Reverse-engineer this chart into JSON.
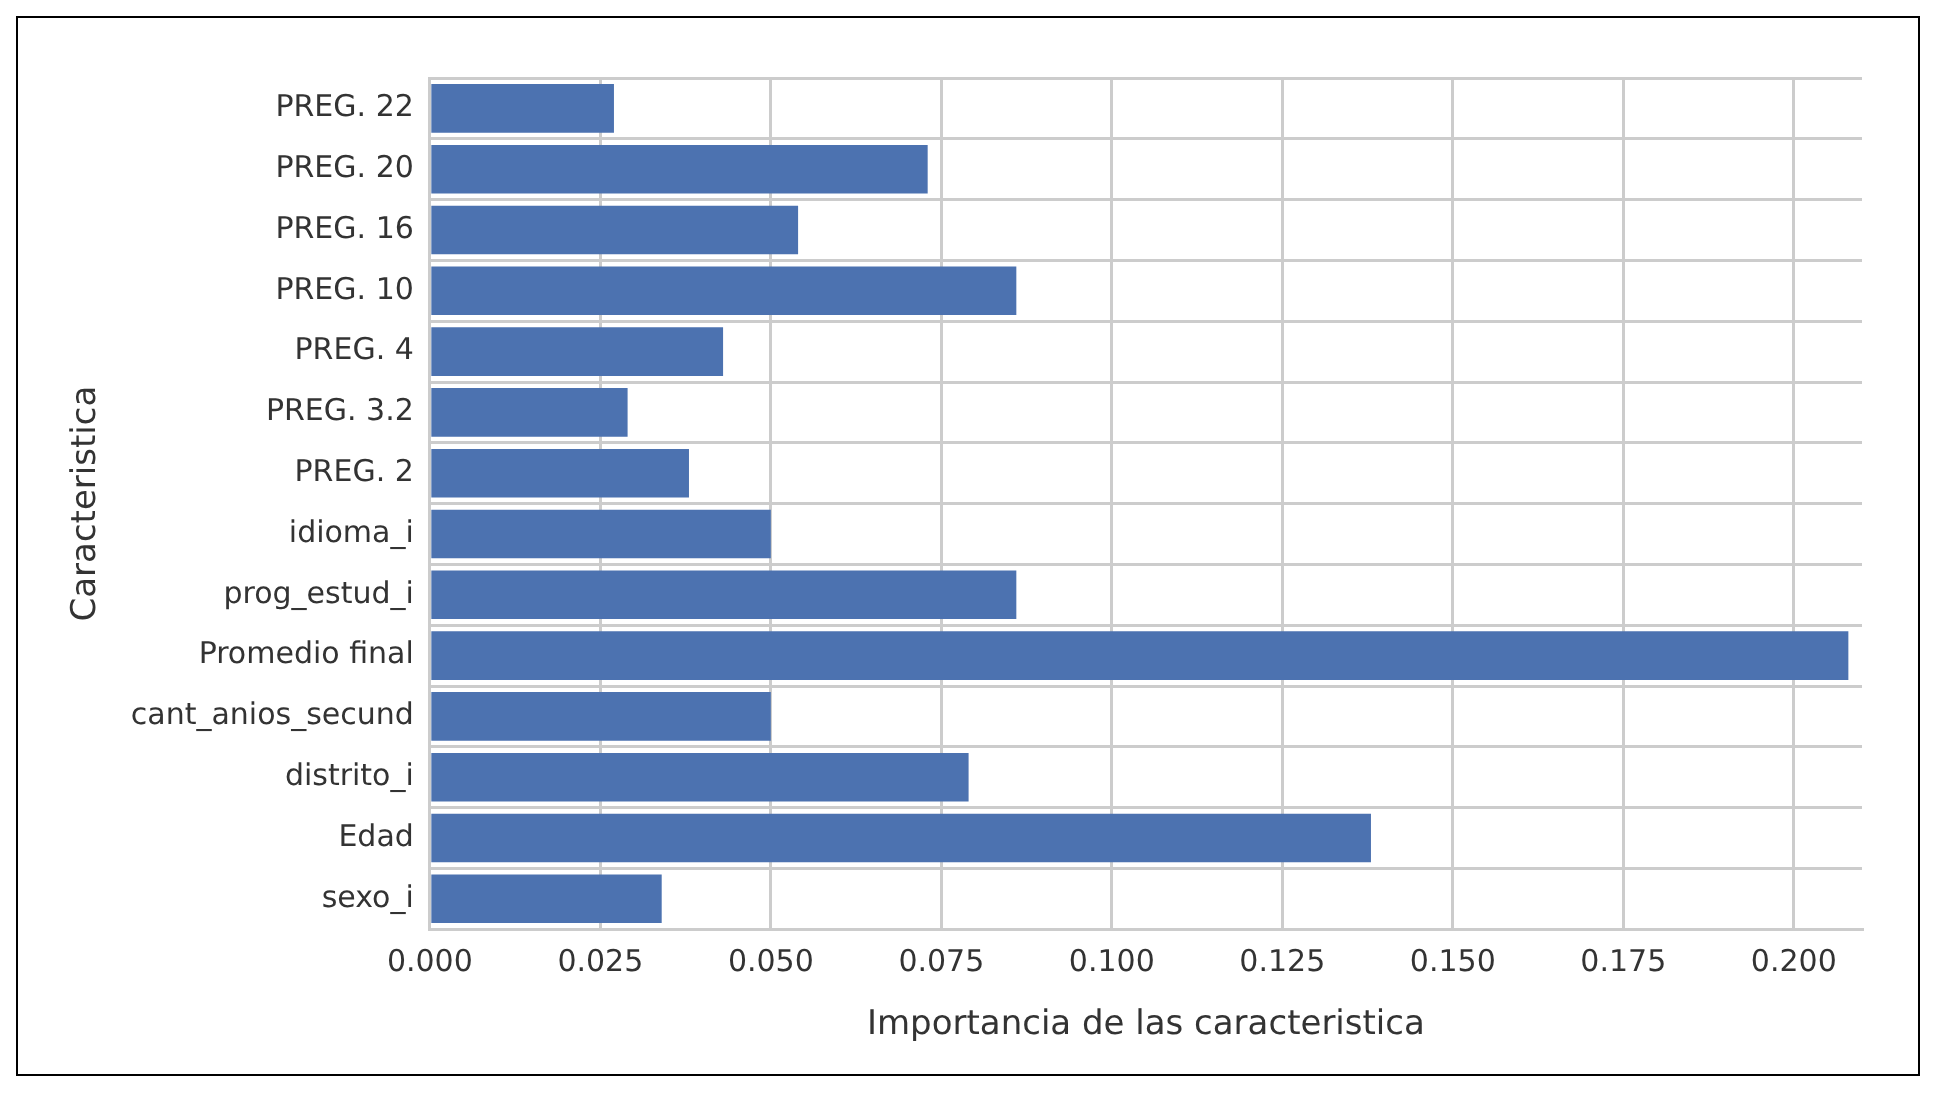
{
  "chart_data": {
    "type": "bar",
    "orientation": "horizontal",
    "xlabel": "Importancia de las caracteristica",
    "ylabel": "Caracteristica",
    "categories": [
      "PREG. 22",
      "PREG. 20",
      "PREG. 16",
      "PREG. 10",
      "PREG. 4",
      "PREG. 3.2",
      "PREG. 2",
      "idioma_i",
      "prog_estud_i",
      "Promedio final",
      "cant_anios_secund",
      "distrito_i",
      "Edad",
      "sexo_i"
    ],
    "values": [
      0.027,
      0.073,
      0.054,
      0.086,
      0.043,
      0.029,
      0.038,
      0.05,
      0.086,
      0.208,
      0.05,
      0.079,
      0.138,
      0.034
    ],
    "color": "#4c72b0",
    "xlim": [
      0,
      0.21
    ],
    "xticks": [
      {
        "value": 0,
        "label": "0.000"
      },
      {
        "value": 0.025,
        "label": "0.025"
      },
      {
        "value": 0.05,
        "label": "0.050"
      },
      {
        "value": 0.075,
        "label": "0.075"
      },
      {
        "value": 0.1,
        "label": "0.100"
      },
      {
        "value": 0.125,
        "label": "0.125"
      },
      {
        "value": 0.15,
        "label": "0.150"
      },
      {
        "value": 0.175,
        "label": "0.175"
      },
      {
        "value": 0.2,
        "label": "0.200"
      }
    ],
    "grid": true,
    "legend": false
  }
}
